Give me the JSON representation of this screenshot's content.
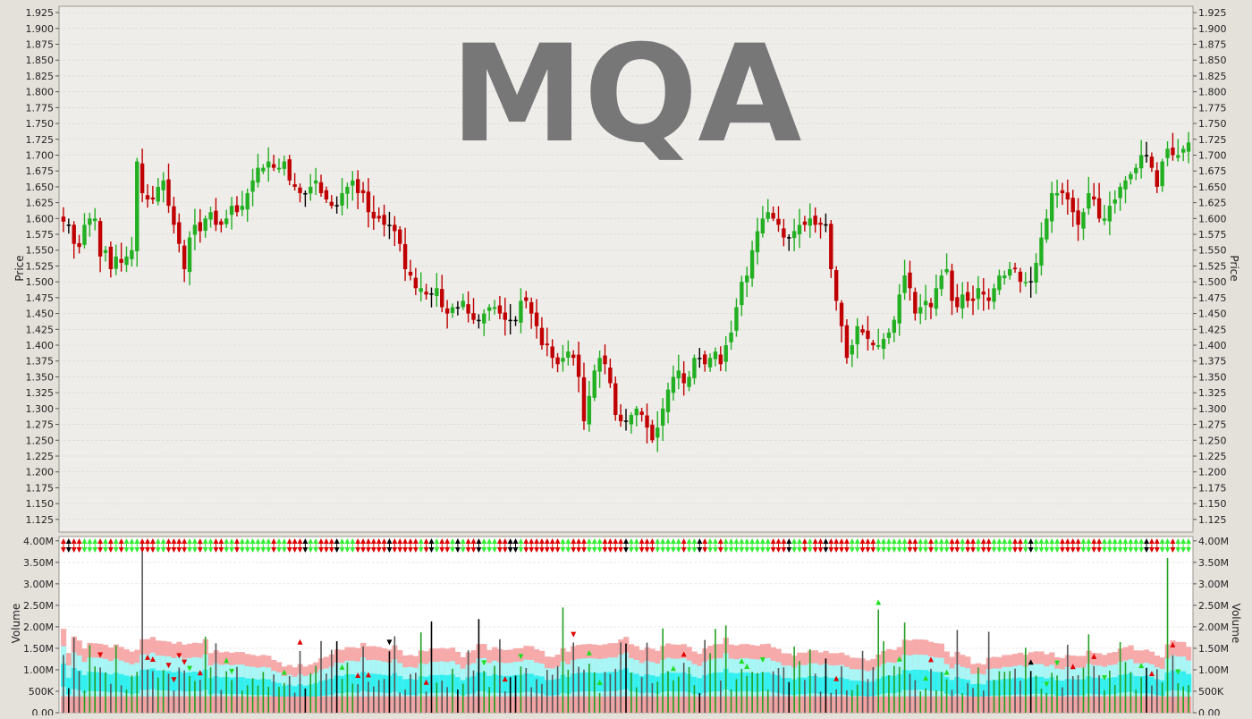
{
  "chart_data": [
    {
      "type": "candlestick",
      "title": "MQA",
      "ylabel": "Price",
      "ylim": [
        1.105,
        1.935
      ],
      "yticks": [
        "1.125",
        "1.150",
        "1.175",
        "1.200",
        "1.225",
        "1.250",
        "1.275",
        "1.300",
        "1.325",
        "1.350",
        "1.375",
        "1.400",
        "1.425",
        "1.450",
        "1.475",
        "1.500",
        "1.525",
        "1.550",
        "1.575",
        "1.600",
        "1.625",
        "1.650",
        "1.675",
        "1.700",
        "1.725",
        "1.750",
        "1.775",
        "1.800",
        "1.825",
        "1.850",
        "1.875",
        "1.900",
        "1.925"
      ],
      "grid": true,
      "series": [
        {
          "close": [
            1.595,
            1.59,
            1.56,
            1.555,
            1.59,
            1.6,
            1.6,
            1.54,
            1.55,
            1.52,
            1.54,
            1.53,
            1.54,
            1.55,
            1.69,
            1.64,
            1.63,
            1.63,
            1.65,
            1.66,
            1.62,
            1.59,
            1.56,
            1.52,
            1.57,
            1.59,
            1.58,
            1.6,
            1.61,
            1.59,
            1.59,
            1.6,
            1.62,
            1.61,
            1.62,
            1.64,
            1.66,
            1.68,
            1.68,
            1.69,
            1.68,
            1.68,
            1.69,
            1.66,
            1.65,
            1.64,
            1.64,
            1.65,
            1.66,
            1.64,
            1.63,
            1.62,
            1.62,
            1.64,
            1.65,
            1.66,
            1.64,
            1.64,
            1.61,
            1.6,
            1.6,
            1.59,
            1.59,
            1.58,
            1.56,
            1.52,
            1.51,
            1.49,
            1.49,
            1.48,
            1.48,
            1.49,
            1.46,
            1.45,
            1.46,
            1.46,
            1.47,
            1.45,
            1.44,
            1.44,
            1.45,
            1.46,
            1.46,
            1.45,
            1.44,
            1.44,
            1.44,
            1.47,
            1.47,
            1.45,
            1.43,
            1.4,
            1.4,
            1.38,
            1.37,
            1.38,
            1.39,
            1.38,
            1.35,
            1.28,
            1.32,
            1.36,
            1.38,
            1.37,
            1.34,
            1.29,
            1.28,
            1.28,
            1.29,
            1.3,
            1.29,
            1.27,
            1.25,
            1.27,
            1.3,
            1.33,
            1.35,
            1.36,
            1.34,
            1.35,
            1.38,
            1.38,
            1.37,
            1.38,
            1.39,
            1.37,
            1.4,
            1.42,
            1.46,
            1.5,
            1.51,
            1.55,
            1.58,
            1.6,
            1.61,
            1.6,
            1.59,
            1.57,
            1.57,
            1.58,
            1.59,
            1.59,
            1.6,
            1.59,
            1.59,
            1.59,
            1.52,
            1.47,
            1.43,
            1.38,
            1.4,
            1.43,
            1.42,
            1.41,
            1.4,
            1.4,
            1.41,
            1.42,
            1.44,
            1.48,
            1.51,
            1.49,
            1.45,
            1.46,
            1.47,
            1.46,
            1.49,
            1.51,
            1.52,
            1.47,
            1.46,
            1.48,
            1.47,
            1.47,
            1.49,
            1.48,
            1.47,
            1.49,
            1.51,
            1.51,
            1.52,
            1.52,
            1.5,
            1.5,
            1.5,
            1.53,
            1.57,
            1.6,
            1.64,
            1.64,
            1.64,
            1.63,
            1.61,
            1.59,
            1.61,
            1.64,
            1.63,
            1.6,
            1.6,
            1.62,
            1.63,
            1.65,
            1.66,
            1.67,
            1.68,
            1.7,
            1.7,
            1.68,
            1.65,
            1.69,
            1.71,
            1.7,
            1.7,
            1.71,
            1.72
          ]
        }
      ]
    },
    {
      "type": "bar",
      "ylabel": "Volume",
      "ylim": [
        0,
        4100000
      ],
      "yticks": [
        "0.00",
        "500K",
        "1.00M",
        "1.50M",
        "2.00M",
        "2.50M",
        "3.00M",
        "3.50M",
        "4.00M"
      ],
      "grid": true,
      "spikes": [
        {
          "index": 15,
          "value": 3950000
        },
        {
          "index": 95,
          "value": 2450000
        },
        {
          "index": 155,
          "value": 2400000
        },
        {
          "index": 160,
          "value": 2100000
        },
        {
          "index": 210,
          "value": 3600000
        }
      ]
    }
  ]
}
